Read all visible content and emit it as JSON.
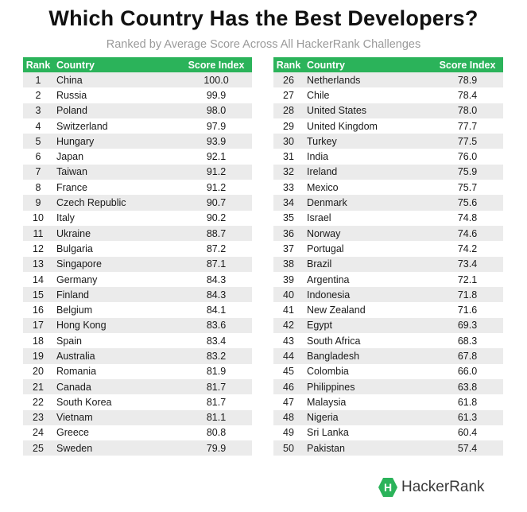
{
  "title": "Which Country Has the Best Developers?",
  "subtitle": "Ranked by Average Score Across All HackerRank Challenges",
  "brand": {
    "name": "HackerRank",
    "icon_letter": "H",
    "icon": "hackerrank-logo-icon",
    "color": "#2bb35a"
  },
  "colors": {
    "header": "#2bb35a",
    "stripe": "#ebebeb",
    "header_text": "#ffffff"
  },
  "chart_data": {
    "type": "table",
    "columns": [
      "Rank",
      "Country",
      "Score Index"
    ],
    "rows": [
      [
        1,
        "China",
        "100.0"
      ],
      [
        2,
        "Russia",
        "99.9"
      ],
      [
        3,
        "Poland",
        "98.0"
      ],
      [
        4,
        "Switzerland",
        "97.9"
      ],
      [
        5,
        "Hungary",
        "93.9"
      ],
      [
        6,
        "Japan",
        "92.1"
      ],
      [
        7,
        "Taiwan",
        "91.2"
      ],
      [
        8,
        "France",
        "91.2"
      ],
      [
        9,
        "Czech Republic",
        "90.7"
      ],
      [
        10,
        "Italy",
        "90.2"
      ],
      [
        11,
        "Ukraine",
        "88.7"
      ],
      [
        12,
        "Bulgaria",
        "87.2"
      ],
      [
        13,
        "Singapore",
        "87.1"
      ],
      [
        14,
        "Germany",
        "84.3"
      ],
      [
        15,
        "Finland",
        "84.3"
      ],
      [
        16,
        "Belgium",
        "84.1"
      ],
      [
        17,
        "Hong Kong",
        "83.6"
      ],
      [
        18,
        "Spain",
        "83.4"
      ],
      [
        19,
        "Australia",
        "83.2"
      ],
      [
        20,
        "Romania",
        "81.9"
      ],
      [
        21,
        "Canada",
        "81.7"
      ],
      [
        22,
        "South Korea",
        "81.7"
      ],
      [
        23,
        "Vietnam",
        "81.1"
      ],
      [
        24,
        "Greece",
        "80.8"
      ],
      [
        25,
        "Sweden",
        "79.9"
      ],
      [
        26,
        "Netherlands",
        "78.9"
      ],
      [
        27,
        "Chile",
        "78.4"
      ],
      [
        28,
        "United States",
        "78.0"
      ],
      [
        29,
        "United Kingdom",
        "77.7"
      ],
      [
        30,
        "Turkey",
        "77.5"
      ],
      [
        31,
        "India",
        "76.0"
      ],
      [
        32,
        "Ireland",
        "75.9"
      ],
      [
        33,
        "Mexico",
        "75.7"
      ],
      [
        34,
        "Denmark",
        "75.6"
      ],
      [
        35,
        "Israel",
        "74.8"
      ],
      [
        36,
        "Norway",
        "74.6"
      ],
      [
        37,
        "Portugal",
        "74.2"
      ],
      [
        38,
        "Brazil",
        "73.4"
      ],
      [
        39,
        "Argentina",
        "72.1"
      ],
      [
        40,
        "Indonesia",
        "71.8"
      ],
      [
        41,
        "New Zealand",
        "71.6"
      ],
      [
        42,
        "Egypt",
        "69.3"
      ],
      [
        43,
        "South Africa",
        "68.3"
      ],
      [
        44,
        "Bangladesh",
        "67.8"
      ],
      [
        45,
        "Colombia",
        "66.0"
      ],
      [
        46,
        "Philippines",
        "63.8"
      ],
      [
        47,
        "Malaysia",
        "61.8"
      ],
      [
        48,
        "Nigeria",
        "61.3"
      ],
      [
        49,
        "Sri Lanka",
        "60.4"
      ],
      [
        50,
        "Pakistan",
        "57.4"
      ]
    ]
  }
}
